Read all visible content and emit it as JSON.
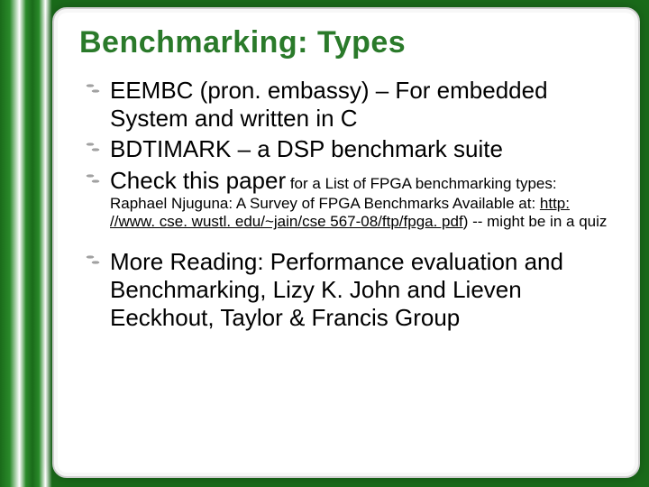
{
  "slide": {
    "title": "Benchmarking: Types",
    "title_color": "#2a7a2a",
    "background_color": "#ffffff",
    "accent_gradient_colors": [
      "#1a6b1a",
      "#2a8a2a",
      "#ffffff"
    ],
    "bullet_icon_color": "#555555",
    "bullets": [
      {
        "main": "EEMBC (pron. embassy) – For embedded System and written in C",
        "main_fontsize": 26
      },
      {
        "main": "BDTIMARK – a DSP benchmark suite",
        "main_fontsize": 26
      },
      {
        "main": "Check this paper",
        "sub": " for a List of FPGA benchmarking types: Raphael Njuguna: A Survey of FPGA Benchmarks Available at: ",
        "link": "http: //www. cse. wustl. edu/~jain/cse 567-08/ftp/fpga. pdf",
        "sub_after": ") -- might be in a quiz",
        "main_fontsize": 26,
        "sub_fontsize": 17
      },
      {
        "main": "More Reading: Performance evaluation and Benchmarking, Lizy K. John and Lieven Eeckhout, Taylor & Francis Group",
        "main_fontsize": 26
      }
    ]
  }
}
